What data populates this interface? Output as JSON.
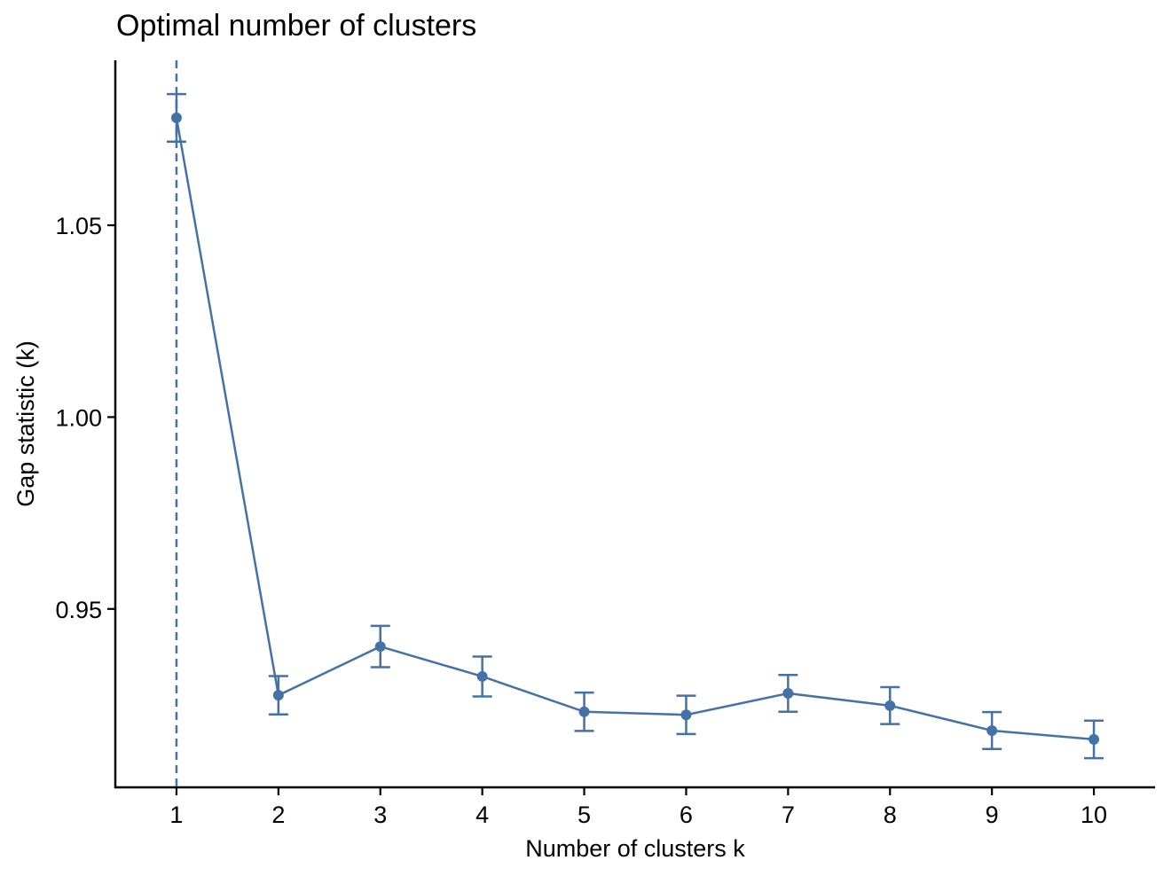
{
  "chart_data": {
    "type": "line",
    "title": "Optimal number of clusters",
    "xlabel": "Number of clusters k",
    "ylabel": "Gap statistic (k)",
    "x": [
      1,
      2,
      3,
      4,
      5,
      6,
      7,
      8,
      9,
      10
    ],
    "x_tick_labels": [
      "1",
      "2",
      "3",
      "4",
      "5",
      "6",
      "7",
      "8",
      "9",
      "10"
    ],
    "y_ticks": [
      0.95,
      1.0,
      1.05
    ],
    "y_tick_labels": [
      "0.95",
      "1.00",
      "1.05"
    ],
    "ylim": [
      0.9035,
      1.093
    ],
    "series": [
      {
        "values": [
          1.078,
          0.9275,
          0.9402,
          0.9324,
          0.9232,
          0.9224,
          0.928,
          0.9248,
          0.9183,
          0.916
        ],
        "error": [
          0.0062,
          0.005,
          0.0054,
          0.0052,
          0.005,
          0.005,
          0.0048,
          0.0048,
          0.0048,
          0.0049
        ]
      }
    ],
    "optimal_k": 1,
    "grid": false,
    "colors": {
      "series": "#4472a8",
      "axis": "#000000"
    }
  }
}
